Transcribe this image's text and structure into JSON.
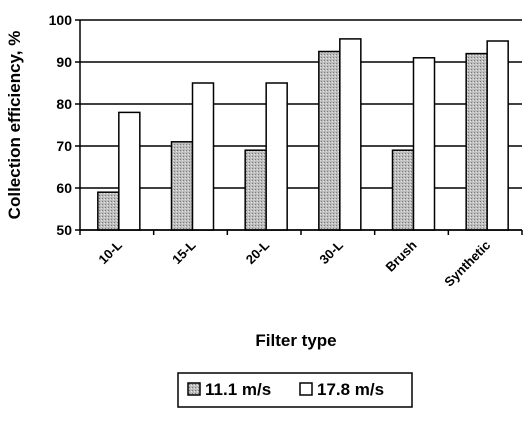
{
  "chart_data": {
    "type": "bar",
    "title": "",
    "xlabel": "Filter type",
    "ylabel": "Collection efficiency, %",
    "categories": [
      "10-L",
      "15-L",
      "20-L",
      "30-L",
      "Brush",
      "Synthetic"
    ],
    "series": [
      {
        "name": "11.1 m/s",
        "values": [
          59,
          71,
          69,
          92.5,
          69,
          92
        ],
        "pattern": "gray-dotted"
      },
      {
        "name": "17.8 m/s",
        "values": [
          78,
          85,
          85,
          95.5,
          91,
          95
        ],
        "pattern": "white"
      }
    ],
    "ylim": [
      50,
      100
    ],
    "yticks": [
      50,
      60,
      70,
      80,
      90,
      100
    ],
    "grid": "horizontal",
    "legend_position": "bottom"
  }
}
